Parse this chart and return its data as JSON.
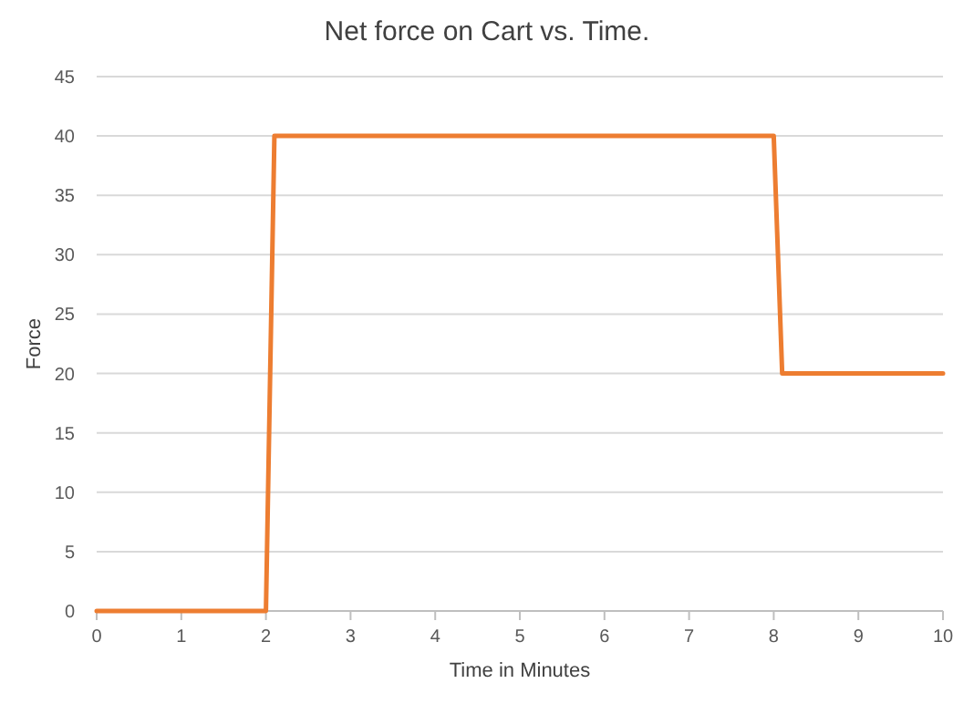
{
  "chart_data": {
    "type": "line",
    "title": "Net force on Cart vs. Time.",
    "xlabel": "Time in Minutes",
    "ylabel": "Force",
    "x": [
      0,
      2,
      2.1,
      8,
      8.1,
      10
    ],
    "series": [
      {
        "color": "#ed7d31",
        "values": [
          0,
          0,
          40,
          40,
          20,
          20
        ]
      }
    ],
    "xlim": [
      0,
      10
    ],
    "xticks": [
      0,
      1,
      2,
      3,
      4,
      5,
      6,
      7,
      8,
      9,
      10
    ],
    "ylim": [
      0,
      45
    ],
    "yticks": [
      0,
      5,
      10,
      15,
      20,
      25,
      30,
      35,
      40,
      45
    ],
    "grid": "y",
    "marker": "none",
    "line_style": "solid"
  }
}
